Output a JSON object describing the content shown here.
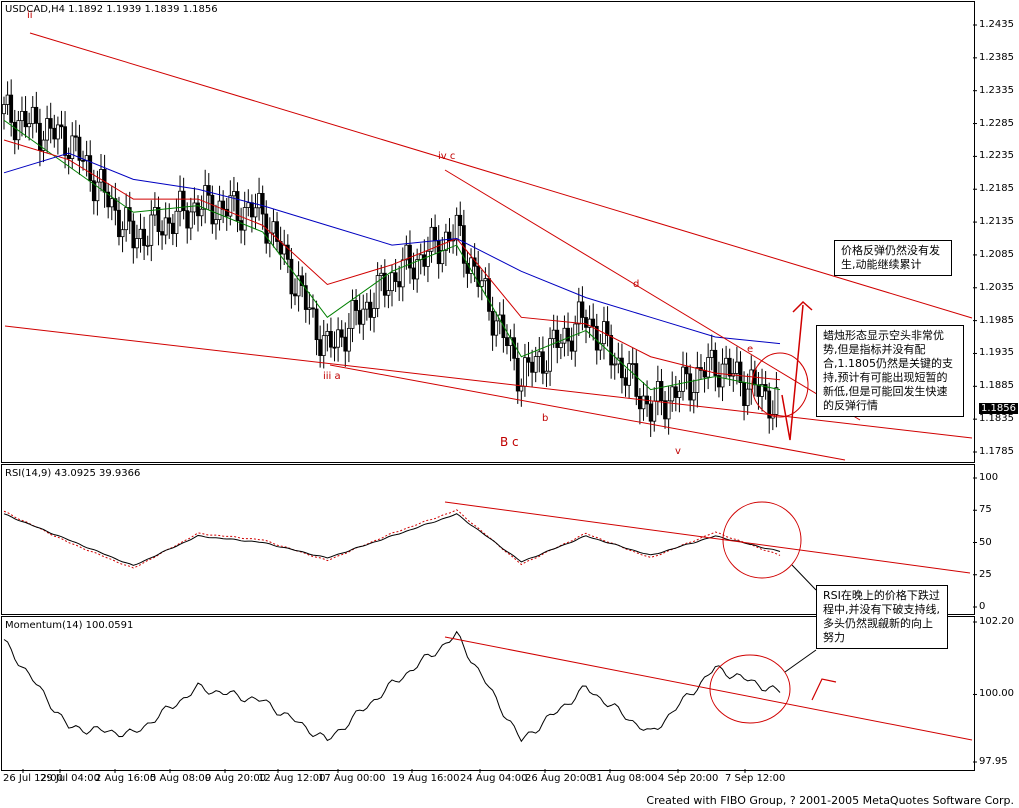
{
  "main_header": "USDCAD,H4  1.1892 1.1939 1.1839 1.1856",
  "rsi_header": "RSI(14,9) 43.0925 39.9366",
  "mom_header": "Momentum(14) 100.0591",
  "current_price": "1.1856",
  "price_ticks": [
    "1.2435",
    "1.2385",
    "1.2335",
    "1.2285",
    "1.2235",
    "1.2185",
    "1.2135",
    "1.2085",
    "1.2035",
    "1.1985",
    "1.1935",
    "1.1885",
    "1.1835",
    "1.1785"
  ],
  "rsi_ticks": [
    "100",
    "75",
    "50",
    "25",
    "0"
  ],
  "mom_ticks": [
    "102.20",
    "100.00",
    "97.95"
  ],
  "date_ticks": [
    "26 Jul 12:00",
    "29 Jul 04:00",
    "2 Aug 16:00",
    "5 Aug 08:00",
    "9 Aug 20:00",
    "12 Aug 12:00",
    "17 Aug 00:00",
    "19 Aug 16:00",
    "24 Aug 04:00",
    "26 Aug 20:00",
    "31 Aug 08:00",
    "4 Sep 20:00",
    "7 Sep 12:00"
  ],
  "wave_labels": {
    "ii": "ii",
    "iv_c": "iv c",
    "iii_a": "iii a",
    "b": "b",
    "B_c": "B c",
    "d": "d",
    "e": "e",
    "v": "v"
  },
  "notes": {
    "note1": "价格反弹仍然没有发生,动能继续累计",
    "note2": "蜡烛形态显示空头非常优势,但是指标并没有配合,1.1805仍然是关键的支持,预计有可能出现短暂的新低,但是可能回发生快速的反弹行情",
    "note3": "RSI在晚上的价格下跌过程中,并没有下破支持线,多头仍然觊觎新的向上努力"
  },
  "footer": "Created with FIBO Group, ? 2001-2005 MetaQuotes Software Corp.",
  "colors": {
    "annotation": "#d00000",
    "ma_fast": "#008000",
    "ma_mid": "#d00000",
    "ma_slow": "#0000c0"
  },
  "chart_data": [
    {
      "type": "candlestick",
      "title": "USDCAD,H4",
      "ylim": [
        1.1785,
        1.2435
      ],
      "x": [
        "26 Jul 12:00",
        "29 Jul 04:00",
        "2 Aug 16:00",
        "5 Aug 08:00",
        "9 Aug 20:00",
        "12 Aug 12:00",
        "17 Aug 00:00",
        "19 Aug 16:00",
        "24 Aug 04:00",
        "26 Aug 20:00",
        "31 Aug 08:00",
        "4 Sep 20:00",
        "7 Sep 12:00"
      ],
      "close": [
        1.23,
        1.226,
        1.211,
        1.216,
        1.215,
        1.194,
        1.205,
        1.212,
        1.19,
        1.199,
        1.185,
        1.192,
        1.1856
      ],
      "series": [
        {
          "name": "ma_fast",
          "values": [
            1.229,
            1.222,
            1.215,
            1.216,
            1.212,
            1.199,
            1.206,
            1.21,
            1.193,
            1.197,
            1.188,
            1.19,
            1.188
          ]
        },
        {
          "name": "ma_mid",
          "values": [
            1.226,
            1.223,
            1.217,
            1.217,
            1.213,
            1.204,
            1.207,
            1.211,
            1.199,
            1.198,
            1.193,
            1.1905,
            1.1895
          ]
        },
        {
          "name": "ma_slow",
          "values": [
            1.221,
            1.224,
            1.22,
            1.2185,
            1.216,
            1.213,
            1.21,
            1.211,
            1.206,
            1.202,
            1.199,
            1.196,
            1.195
          ]
        }
      ]
    },
    {
      "type": "line",
      "title": "RSI(14,9)",
      "ylim": [
        0,
        100
      ],
      "x": [
        "26 Jul 12:00",
        "29 Jul 04:00",
        "2 Aug 16:00",
        "5 Aug 08:00",
        "9 Aug 20:00",
        "12 Aug 12:00",
        "17 Aug 00:00",
        "19 Aug 16:00",
        "24 Aug 04:00",
        "26 Aug 20:00",
        "31 Aug 08:00",
        "4 Sep 20:00",
        "7 Sep 12:00"
      ],
      "series": [
        {
          "name": "rsi",
          "values": [
            72,
            52,
            32,
            55,
            50,
            38,
            55,
            72,
            35,
            55,
            40,
            55,
            43
          ]
        },
        {
          "name": "signal",
          "values": [
            74,
            50,
            30,
            57,
            52,
            36,
            57,
            75,
            33,
            57,
            38,
            58,
            40
          ]
        }
      ]
    },
    {
      "type": "line",
      "title": "Momentum(14)",
      "ylim": [
        97.95,
        102.2
      ],
      "x": [
        "26 Jul 12:00",
        "29 Jul 04:00",
        "2 Aug 16:00",
        "5 Aug 08:00",
        "9 Aug 20:00",
        "12 Aug 12:00",
        "17 Aug 00:00",
        "19 Aug 16:00",
        "24 Aug 04:00",
        "26 Aug 20:00",
        "31 Aug 08:00",
        "4 Sep 20:00",
        "7 Sep 12:00"
      ],
      "series": [
        {
          "name": "momentum",
          "values": [
            101.6,
            99.0,
            98.8,
            100.2,
            99.8,
            98.6,
            100.3,
            101.8,
            98.6,
            100.2,
            98.8,
            100.8,
            100.06
          ]
        }
      ]
    }
  ]
}
